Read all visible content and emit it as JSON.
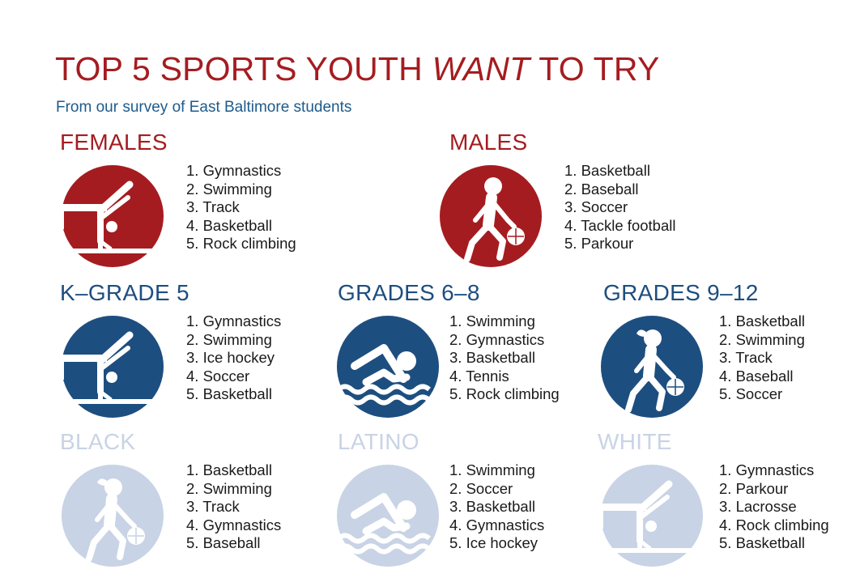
{
  "title": {
    "pre": "TOP 5 SPORTS YOUTH ",
    "emph": "WANT",
    "post": " TO TRY"
  },
  "subtitle": "From our survey of East Baltimore students",
  "colors": {
    "red": "#a51c20",
    "blue": "#1d4e80",
    "pale": "#c8d3e5",
    "subtitle": "#1d5b8c"
  },
  "groups": [
    {
      "heading": "FEMALES",
      "icon": "gymnast-icon",
      "items": [
        "1. Gymnastics",
        "2. Swimming",
        "3. Track",
        "4. Basketball",
        "5. Rock climbing"
      ]
    },
    {
      "heading": "MALES",
      "icon": "basketball-player-male-icon",
      "items": [
        "1. Basketball",
        "2. Baseball",
        "3. Soccer",
        "4. Tackle football",
        "5. Parkour"
      ]
    },
    {
      "heading": "K–GRADE 5",
      "icon": "gymnast-icon",
      "items": [
        "1. Gymnastics",
        "2. Swimming",
        "3. Ice hockey",
        "4. Soccer",
        "5. Basketball"
      ]
    },
    {
      "heading": "GRADES 6–8",
      "icon": "swimmer-icon",
      "items": [
        "1. Swimming",
        "2. Gymnastics",
        "3. Basketball",
        "4. Tennis",
        "5. Rock climbing"
      ]
    },
    {
      "heading": "GRADES 9–12",
      "icon": "basketball-player-female-icon",
      "items": [
        "1. Basketball",
        "2. Swimming",
        "3. Track",
        "4. Baseball",
        "5. Soccer"
      ]
    },
    {
      "heading": "BLACK",
      "icon": "basketball-player-female-icon",
      "items": [
        "1. Basketball",
        "2. Swimming",
        "3. Track",
        "4. Gymnastics",
        "5. Baseball"
      ]
    },
    {
      "heading": "LATINO",
      "icon": "swimmer-icon",
      "items": [
        "1. Swimming",
        "2. Soccer",
        "3. Basketball",
        "4. Gymnastics",
        "5. Ice hockey"
      ]
    },
    {
      "heading": "WHITE",
      "icon": "gymnast-icon",
      "items": [
        "1. Gymnastics",
        "2. Parkour",
        "3. Lacrosse",
        "4. Rock climbing",
        "5. Basketball"
      ]
    }
  ]
}
